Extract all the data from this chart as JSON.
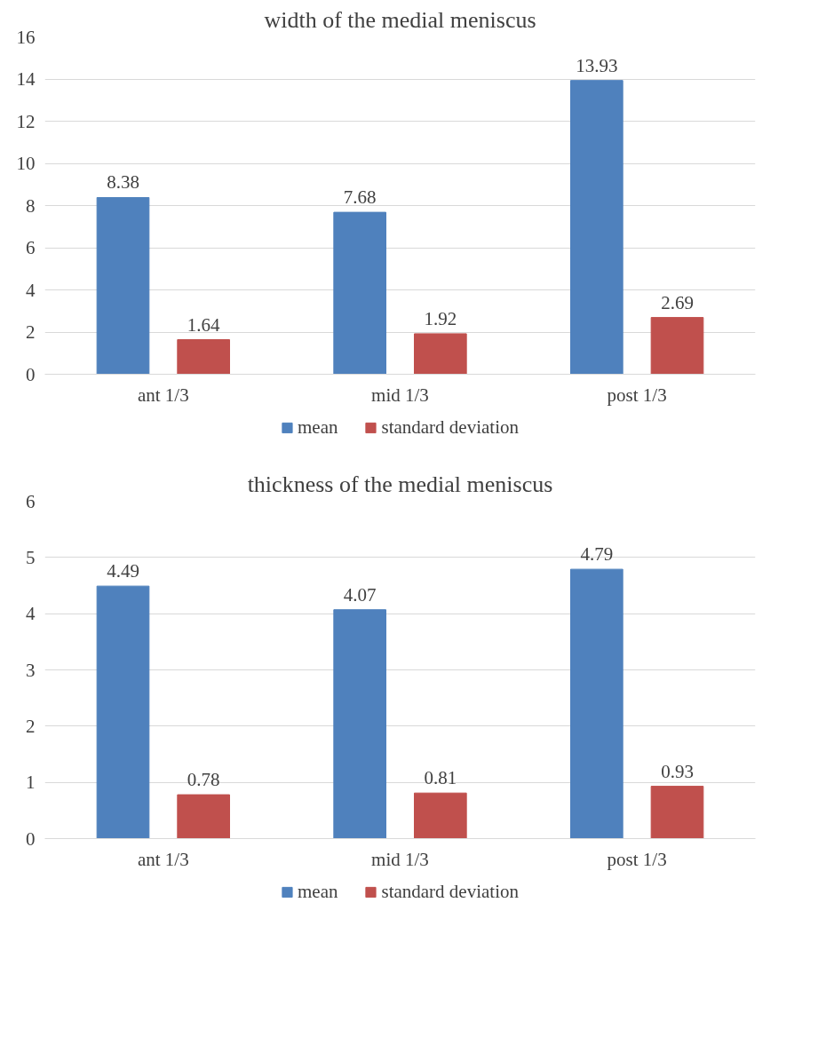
{
  "chart_data": [
    {
      "type": "bar",
      "title": "width of the medial meniscus",
      "categories": [
        "ant 1/3",
        "mid 1/3",
        "post 1/3"
      ],
      "series": [
        {
          "name": "mean",
          "color": "#4f81bd",
          "values": [
            8.38,
            7.68,
            13.93
          ]
        },
        {
          "name": "standard deviation",
          "color": "#c0504d",
          "values": [
            1.64,
            1.92,
            2.69
          ]
        }
      ],
      "ylim": [
        0,
        16
      ],
      "yticks": [
        0,
        2,
        4,
        6,
        8,
        10,
        12,
        14,
        16
      ],
      "grid": "y",
      "legend": "bottom",
      "data_labels": true
    },
    {
      "type": "bar",
      "title": "thickness of the medial meniscus",
      "categories": [
        "ant 1/3",
        "mid 1/3",
        "post 1/3"
      ],
      "series": [
        {
          "name": "mean",
          "color": "#4f81bd",
          "values": [
            4.49,
            4.07,
            4.79
          ]
        },
        {
          "name": "standard deviation",
          "color": "#c0504d",
          "values": [
            0.78,
            0.81,
            0.93
          ]
        }
      ],
      "ylim": [
        0,
        6
      ],
      "yticks": [
        0,
        1,
        2,
        3,
        4,
        5,
        6
      ],
      "grid": "y",
      "legend": "bottom",
      "data_labels": true
    }
  ]
}
